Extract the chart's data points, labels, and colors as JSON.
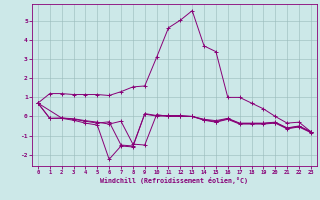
{
  "xlabel": "Windchill (Refroidissement éolien,°C)",
  "background_color": "#cce8e8",
  "line_color": "#880077",
  "grid_color": "#99bbbb",
  "xlim": [
    -0.5,
    23.5
  ],
  "ylim": [
    -2.6,
    5.9
  ],
  "xtick_labels": [
    "0",
    "1",
    "2",
    "3",
    "4",
    "5",
    "6",
    "7",
    "8",
    "9",
    "10",
    "11",
    "12",
    "13",
    "14",
    "15",
    "16",
    "17",
    "18",
    "19",
    "20",
    "21",
    "22",
    "23"
  ],
  "ytick_labels": [
    "-2",
    "-1",
    "0",
    "1",
    "2",
    "3",
    "4",
    "5"
  ],
  "ytick_vals": [
    -2,
    -1,
    0,
    1,
    2,
    3,
    4,
    5
  ],
  "curve1_x": [
    0,
    1,
    2,
    3,
    4,
    5,
    6,
    7,
    8,
    9,
    10,
    11,
    12,
    13,
    14,
    15,
    16,
    17,
    18,
    19,
    20,
    21,
    22,
    23
  ],
  "curve1_y": [
    0.7,
    1.2,
    1.2,
    1.15,
    1.15,
    1.15,
    1.1,
    1.3,
    1.55,
    1.6,
    3.1,
    4.65,
    5.05,
    5.55,
    3.7,
    3.4,
    1.0,
    1.0,
    0.7,
    0.4,
    0.0,
    -0.35,
    -0.3,
    -0.8
  ],
  "curve2_x": [
    0,
    1,
    2,
    3,
    4,
    5,
    6,
    7,
    8,
    9,
    10,
    11,
    12,
    13,
    14,
    15,
    16,
    17,
    18,
    19,
    20,
    21,
    22,
    23
  ],
  "curve2_y": [
    0.7,
    -0.1,
    -0.1,
    -0.2,
    -0.35,
    -0.45,
    -2.25,
    -1.55,
    -1.6,
    0.15,
    0.05,
    0.05,
    0.05,
    0.0,
    -0.2,
    -0.3,
    -0.15,
    -0.4,
    -0.4,
    -0.4,
    -0.35,
    -0.65,
    -0.55,
    -0.85
  ],
  "curve3_x": [
    0,
    1,
    2,
    3,
    4,
    5,
    6,
    7,
    8,
    9,
    10,
    11,
    12,
    13,
    14,
    15,
    16,
    17,
    18,
    19,
    20,
    21,
    22,
    23
  ],
  "curve3_y": [
    0.7,
    -0.1,
    -0.08,
    -0.15,
    -0.25,
    -0.35,
    -0.28,
    -1.5,
    -1.55,
    0.12,
    0.02,
    0.02,
    0.02,
    0.0,
    -0.17,
    -0.27,
    -0.12,
    -0.37,
    -0.37,
    -0.37,
    -0.32,
    -0.62,
    -0.52,
    -0.82
  ],
  "curve4_x": [
    0,
    2,
    3,
    4,
    5,
    6,
    7,
    8,
    9,
    10,
    11,
    12,
    13,
    14,
    15,
    16,
    17,
    18,
    19,
    20,
    21,
    22,
    23
  ],
  "curve4_y": [
    0.7,
    -0.08,
    -0.12,
    -0.22,
    -0.3,
    -0.4,
    -0.25,
    -1.45,
    -1.5,
    0.1,
    0.0,
    0.0,
    0.0,
    -0.15,
    -0.22,
    -0.1,
    -0.35,
    -0.35,
    -0.35,
    -0.3,
    -0.6,
    -0.5,
    -0.8
  ]
}
